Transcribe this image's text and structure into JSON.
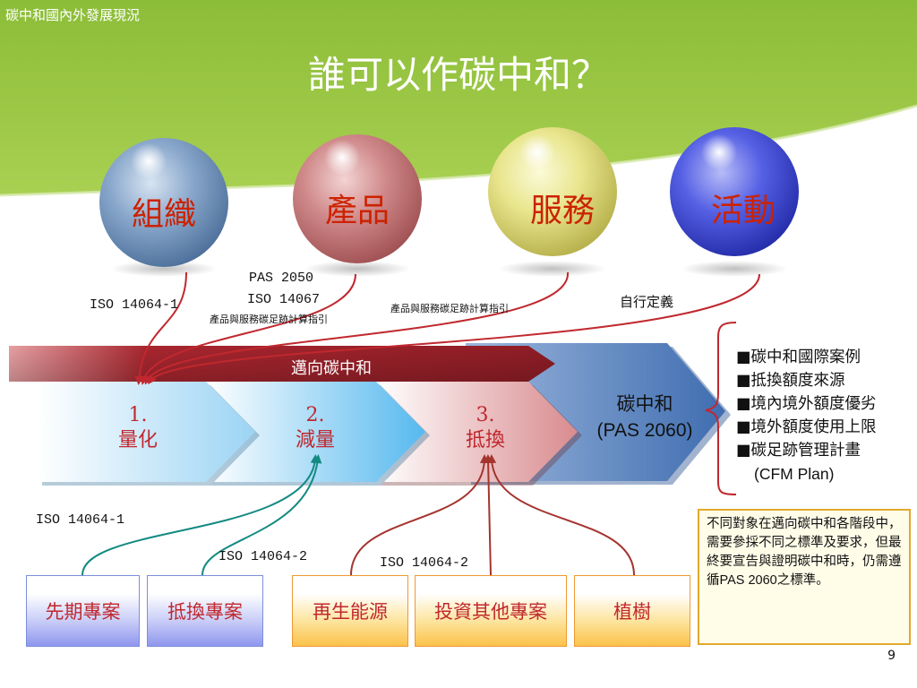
{
  "header": {
    "subtitle": "碳中和國內外發展現況",
    "title": "誰可以作碳中和？",
    "green": "#8dbe3b"
  },
  "spheres": [
    {
      "label": "組織",
      "color": "#7f9fc6"
    },
    {
      "label": "產品",
      "color": "#cf7e80"
    },
    {
      "label": "服務",
      "color": "#e6e285"
    },
    {
      "label": "活動",
      "color": "#4c5ae0"
    }
  ],
  "standards_top": {
    "iso_14064_1": "ISO 14064-1",
    "pas_2050": "PAS 2050",
    "iso_14067": "ISO 14067",
    "product_guide_left": "產品與服務碳足跡計算指引",
    "product_guide_right": "產品與服務碳足跡計算指引",
    "self_defined": "自行定義"
  },
  "banner": {
    "label": "邁向碳中和"
  },
  "steps": [
    {
      "number": "1.",
      "label": "量化"
    },
    {
      "number": "2.",
      "label": "減量"
    },
    {
      "number": "3.",
      "label": "抵換"
    }
  ],
  "target": {
    "line1": "碳中和",
    "line2": "(PAS 2060)"
  },
  "bullets": [
    "■碳中和國際案例",
    "■抵換額度來源",
    "■境內境外額度優劣",
    "■境外額度使用上限",
    "■碳足跡管理計畫"
  ],
  "bullet_last_cont": "(CFM Plan)",
  "standards_bottom": {
    "iso_14064_1": "ISO 14064-1",
    "iso_14064_2_left": "ISO 14064-2",
    "iso_14064_2_right": "ISO 14064-2"
  },
  "project_boxes": [
    {
      "label": "先期專案"
    },
    {
      "label": "抵換專案"
    },
    {
      "label": "再生能源"
    },
    {
      "label": "投資其他專案"
    },
    {
      "label": "植樹"
    }
  ],
  "note": {
    "text_before": "不同對象在邁向碳中和各階段中，需要參採不同之標準及要求，但最終要宣告與證明碳中和時，仍需遵循",
    "text_emphasis": "PAS 2060",
    "text_after": "之標準。"
  },
  "page_number": "9"
}
